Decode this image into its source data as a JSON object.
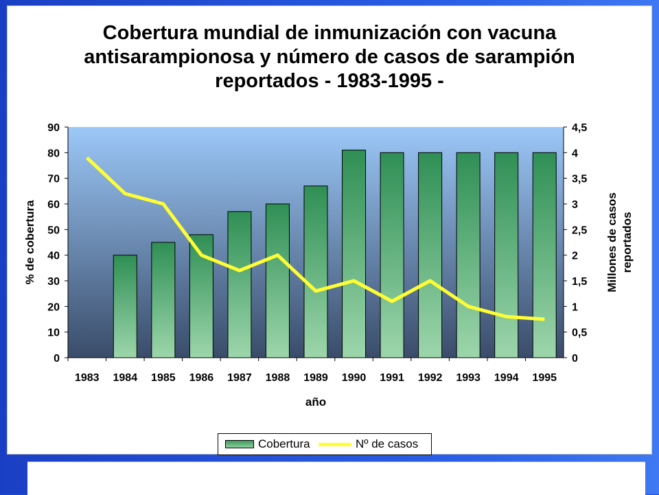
{
  "slide": {
    "title_lines": [
      "Cobertura mundial de inmunización con vacuna",
      "antisarampionosa y número de casos de sarampión",
      "reportados - 1983-1995 -"
    ]
  },
  "colors": {
    "background": "#1f4fd6",
    "bar_top": "#2f8f55",
    "bar_bottom": "#9dd6ab",
    "line": "#ffff33",
    "plot_top": "#9cc8f8",
    "plot_bottom": "#3a4c6a"
  },
  "chart_data": {
    "type": "bar",
    "title": "Cobertura mundial de inmunización con vacuna antisarampionosa y número de casos de sarampión reportados - 1983-1995 -",
    "xlabel": "año",
    "ylabel": "% de cobertura",
    "y2label_lines": [
      "Millones de casos",
      "reportados"
    ],
    "categories": [
      "1983",
      "1984",
      "1985",
      "1986",
      "1987",
      "1988",
      "1989",
      "1990",
      "1991",
      "1992",
      "1993",
      "1994",
      "1995"
    ],
    "ylim": [
      0,
      90
    ],
    "y_ticks": [
      "0",
      "10",
      "20",
      "30",
      "40",
      "50",
      "60",
      "70",
      "80",
      "90"
    ],
    "y2lim": [
      0,
      4.5
    ],
    "y2_ticks": [
      "0",
      "0,5",
      "1",
      "1,5",
      "2",
      "2,5",
      "3",
      "3,5",
      "4",
      "4,5"
    ],
    "series": [
      {
        "name": "Cobertura",
        "type": "bar",
        "axis": "left",
        "values": [
          null,
          40,
          45,
          48,
          57,
          60,
          67,
          81,
          80,
          80,
          80,
          80,
          80
        ]
      },
      {
        "name": "Nº de casos",
        "type": "line",
        "axis": "right",
        "values": [
          3.9,
          3.2,
          3.0,
          2.0,
          1.7,
          2.0,
          1.3,
          1.5,
          1.1,
          1.5,
          1.0,
          0.8,
          0.75
        ]
      }
    ],
    "grid": false,
    "legend_position": "bottom"
  }
}
